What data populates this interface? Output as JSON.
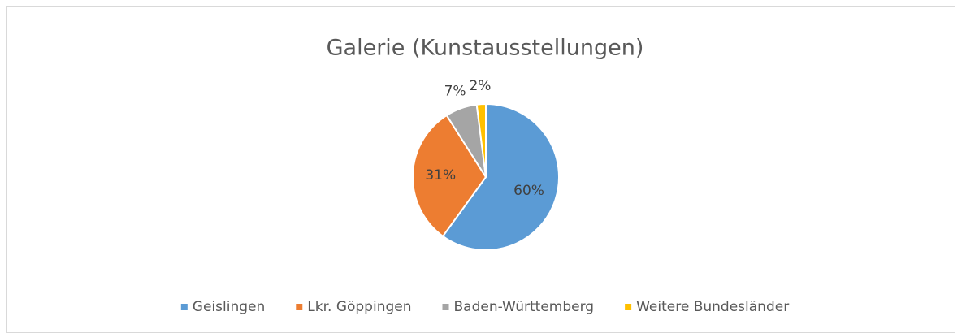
{
  "chart_data": {
    "type": "pie",
    "title": "Galerie (Kunstausstellungen)",
    "categories": [
      "Geislingen",
      "Lkr. Göppingen",
      "Baden-Württemberg",
      "Weitere Bundesländer"
    ],
    "values": [
      60,
      31,
      7,
      2
    ],
    "value_labels": [
      "60%",
      "31%",
      "7%",
      "2%"
    ],
    "colors": [
      "#5b9bd5",
      "#ed7d31",
      "#a5a5a5",
      "#ffc000"
    ],
    "legend": "bottom"
  }
}
